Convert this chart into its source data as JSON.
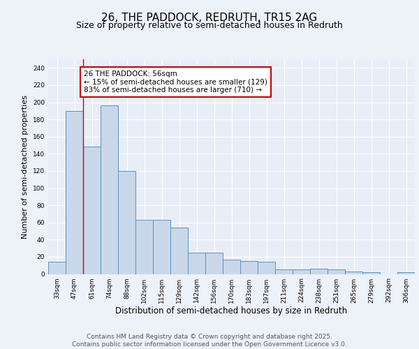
{
  "title": "26, THE PADDOCK, REDRUTH, TR15 2AG",
  "subtitle": "Size of property relative to semi-detached houses in Redruth",
  "xlabel": "Distribution of semi-detached houses by size in Redruth",
  "ylabel": "Number of semi-detached properties",
  "categories": [
    "33sqm",
    "47sqm",
    "61sqm",
    "74sqm",
    "88sqm",
    "102sqm",
    "115sqm",
    "129sqm",
    "142sqm",
    "156sqm",
    "170sqm",
    "183sqm",
    "197sqm",
    "211sqm",
    "224sqm",
    "238sqm",
    "251sqm",
    "265sqm",
    "279sqm",
    "292sqm",
    "306sqm"
  ],
  "values": [
    14,
    190,
    148,
    196,
    120,
    63,
    63,
    54,
    25,
    25,
    17,
    15,
    14,
    5,
    5,
    6,
    5,
    3,
    2,
    0,
    2
  ],
  "bar_color": "#c8d8ea",
  "bar_edge_color": "#6090bb",
  "bar_linewidth": 0.7,
  "red_line_x": 1.5,
  "red_line_color": "#cc0000",
  "annotation_box_text": "26 THE PADDOCK: 56sqm\n← 15% of semi-detached houses are smaller (129)\n83% of semi-detached houses are larger (710) →",
  "annotation_color": "#cc0000",
  "ylim": [
    0,
    250
  ],
  "yticks": [
    0,
    20,
    40,
    60,
    80,
    100,
    120,
    140,
    160,
    180,
    200,
    220,
    240
  ],
  "bg_color": "#e8eef8",
  "grid_color": "#ffffff",
  "fig_bg_color": "#edf1f8",
  "footer_text": "Contains HM Land Registry data © Crown copyright and database right 2025.\nContains public sector information licensed under the Open Government Licence v3.0.",
  "title_fontsize": 11,
  "subtitle_fontsize": 9,
  "axis_label_fontsize": 8,
  "tick_fontsize": 6.5,
  "annotation_fontsize": 7.5,
  "footer_fontsize": 6.5
}
